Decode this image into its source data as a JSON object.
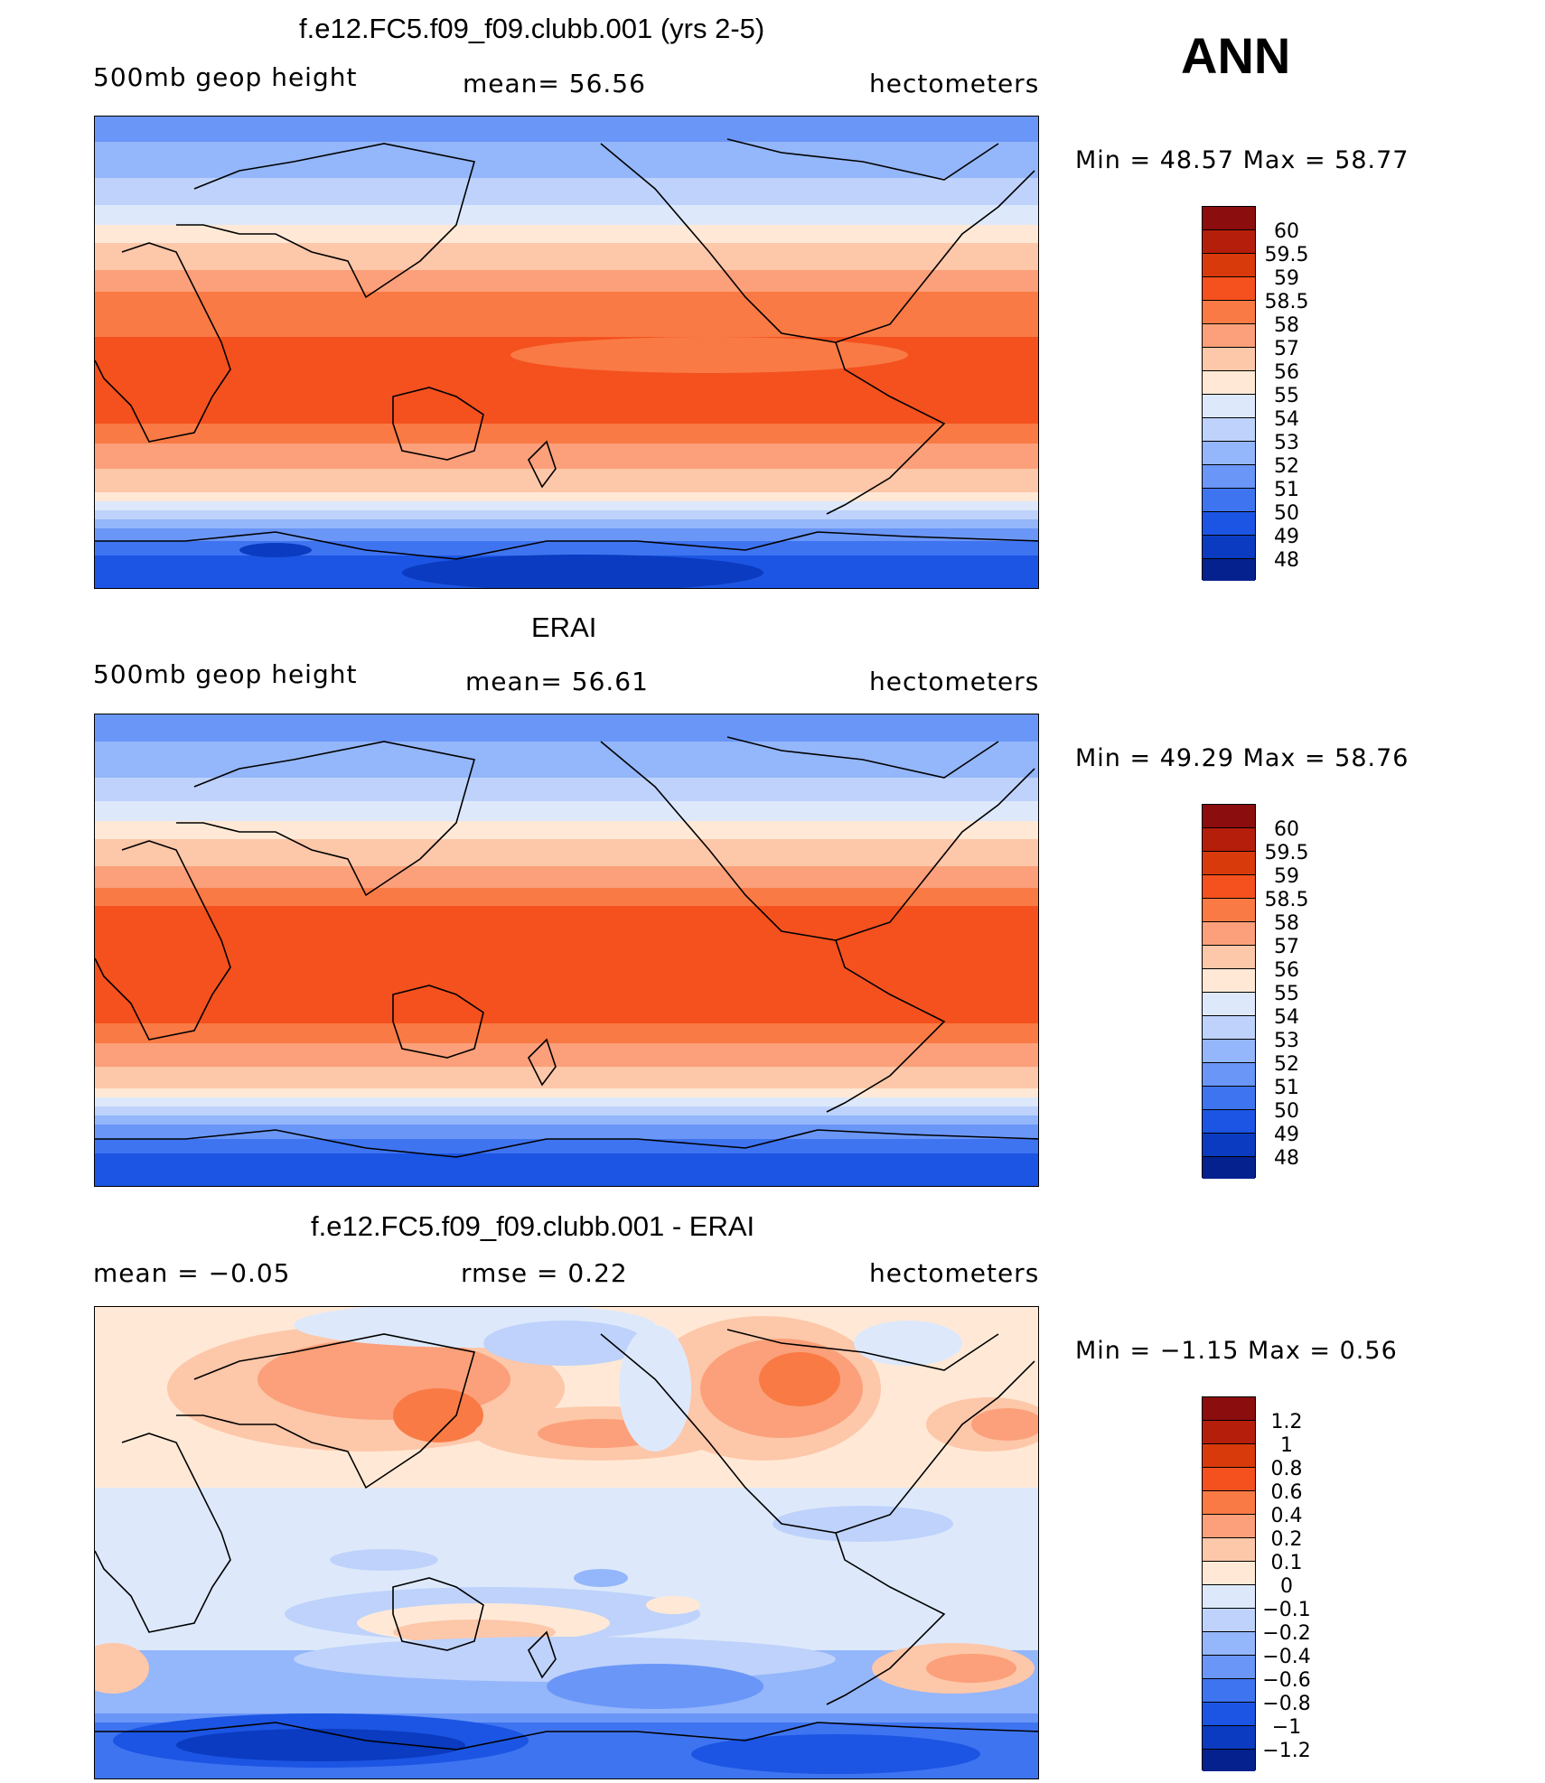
{
  "season": "ANN",
  "panels": [
    {
      "title": "f.e12.FC5.f09_f09.clubb.001 (yrs 2-5)",
      "left_label": "500mb geop height",
      "center_label": "mean=   56.56",
      "right_label": "hectometers",
      "minmax": "Min  =    48.57  Max  =    58.77",
      "colorbar": {
        "labels": [
          "60",
          "59.5",
          "59",
          "58.5",
          "58",
          "57",
          "56",
          "55",
          "54",
          "53",
          "52",
          "51",
          "50",
          "49",
          "48"
        ],
        "colors": [
          "#8b0d0d",
          "#b51e0a",
          "#d93a0c",
          "#f4511e",
          "#f97a45",
          "#fba07a",
          "#fdc7a9",
          "#ffe9d6",
          "#dde9fb",
          "#bed2fb",
          "#94b6fa",
          "#6a96f7",
          "#3f74f1",
          "#1c55e3",
          "#0a3bc0",
          "#04218e"
        ]
      }
    },
    {
      "title": "ERAI",
      "left_label": "500mb geop height",
      "center_label": "mean=   56.61",
      "right_label": "hectometers",
      "minmax": "Min  =    49.29  Max  =    58.76",
      "colorbar": {
        "labels": [
          "60",
          "59.5",
          "59",
          "58.5",
          "58",
          "57",
          "56",
          "55",
          "54",
          "53",
          "52",
          "51",
          "50",
          "49",
          "48"
        ],
        "colors": [
          "#8b0d0d",
          "#b51e0a",
          "#d93a0c",
          "#f4511e",
          "#f97a45",
          "#fba07a",
          "#fdc7a9",
          "#ffe9d6",
          "#dde9fb",
          "#bed2fb",
          "#94b6fa",
          "#6a96f7",
          "#3f74f1",
          "#1c55e3",
          "#0a3bc0",
          "#04218e"
        ]
      }
    },
    {
      "title": "f.e12.FC5.f09_f09.clubb.001 - ERAI",
      "left_label": "mean  =     −0.05",
      "center_label": "rmse  =     0.22",
      "right_label": "hectometers",
      "minmax": "Min  =    −1.15  Max  =      0.56",
      "colorbar": {
        "labels": [
          "1.2",
          "1",
          "0.8",
          "0.6",
          "0.4",
          "0.2",
          "0.1",
          "0",
          "−0.1",
          "−0.2",
          "−0.4",
          "−0.6",
          "−0.8",
          "−1",
          "−1.2"
        ],
        "colors": [
          "#8b0d0d",
          "#b51e0a",
          "#d93a0c",
          "#f4511e",
          "#f97a45",
          "#fba07a",
          "#fdc7a9",
          "#ffe9d6",
          "#dde9fb",
          "#bed2fb",
          "#94b6fa",
          "#6a96f7",
          "#3f74f1",
          "#1c55e3",
          "#0a3bc0",
          "#04218e"
        ]
      }
    }
  ]
}
